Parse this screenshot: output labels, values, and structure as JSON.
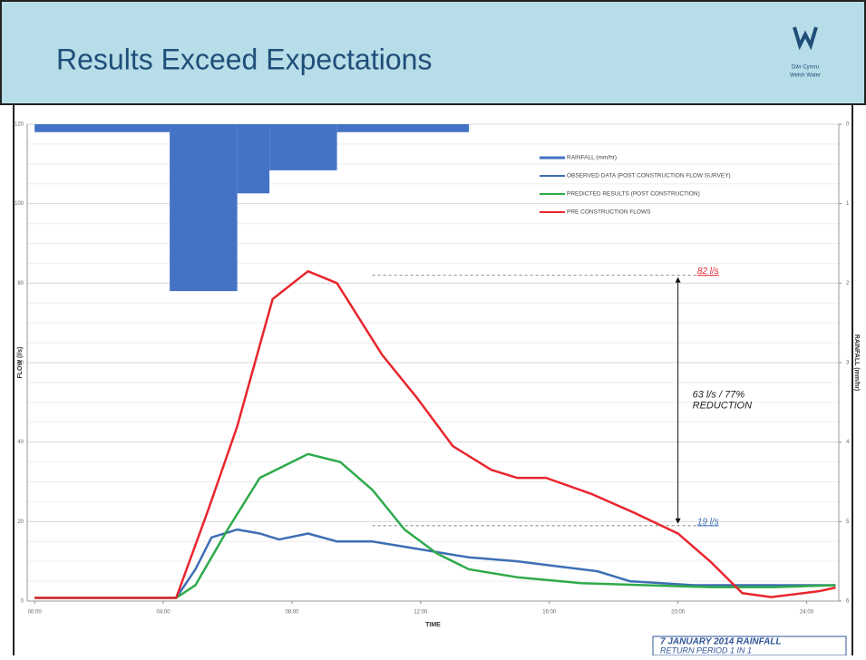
{
  "header": {
    "title": "Results Exceed Expectations",
    "logo_lines": [
      "Dŵr Cymru",
      "Welsh Water"
    ]
  },
  "chart_data": {
    "type": "line",
    "xlabel": "TIME",
    "ylabel": "FLOW (l/s)",
    "y2label": "RAINFALL (mm/hr)",
    "xlim": [
      -0.23,
      25
    ],
    "xticks": [
      {
        "value": 0,
        "label": "00:00"
      },
      {
        "value": 4,
        "label": "04:00"
      },
      {
        "value": 8,
        "label": "08:00"
      },
      {
        "value": 12,
        "label": "12:00"
      },
      {
        "value": 16,
        "label": "16:00"
      },
      {
        "value": 20,
        "label": "20:00"
      },
      {
        "value": 24,
        "label": "24:00"
      }
    ],
    "ylim": [
      0,
      120
    ],
    "yticks": [
      0,
      20,
      40,
      60,
      80,
      100,
      120
    ],
    "y2lim": [
      0,
      6
    ],
    "y2ticks": [
      0,
      1,
      2,
      3,
      4,
      5,
      6
    ],
    "y2_inverted": true,
    "grid": true,
    "legend": "upper right",
    "bars": {
      "name": "RAINFALL (mm/hr)",
      "color": "#4472c4",
      "axis": "y2",
      "bins": [
        0,
        4.2,
        6.3,
        7.3,
        9.4,
        13.5
      ],
      "values": [
        0.1,
        2.1,
        0.87,
        0.58,
        0.1
      ]
    },
    "series": [
      {
        "name": "OBSERVED DATA (POST CONSTRUCTION FLOW SURVEY)",
        "color": "#3d6fb4",
        "x": [
          0,
          4.4,
          5,
          5.5,
          6.3,
          7,
          7.6,
          8.5,
          9.4,
          10.5,
          12,
          13.5,
          15,
          16.5,
          17.5,
          18.5,
          19.5,
          20.5,
          22,
          24.9
        ],
        "values": [
          0.8,
          0.8,
          8,
          16,
          18,
          17,
          15.5,
          17,
          15,
          15,
          13,
          11,
          10,
          8.5,
          7.5,
          5,
          4.5,
          4,
          4,
          4
        ]
      },
      {
        "name": "PREDICTED RESULTS (POST CONSTRUCTION)",
        "color": "#2eaa4a",
        "x": [
          0,
          4.4,
          5,
          6,
          7,
          8.5,
          9.5,
          10.5,
          11.5,
          12.5,
          13.5,
          15,
          17,
          19,
          21,
          23,
          24.9
        ],
        "values": [
          0.8,
          0.8,
          4,
          18,
          31,
          37,
          35,
          28,
          18,
          12,
          8,
          6,
          4.5,
          4,
          3.5,
          3.5,
          4
        ]
      },
      {
        "name": "PRE CONSTRUCTION FLOWS",
        "color": "#e8262e",
        "x": [
          0,
          4.4,
          5.4,
          6.3,
          7.4,
          8.5,
          9.4,
          10.8,
          11.9,
          13,
          14.2,
          15,
          15.9,
          17.3,
          18.7,
          20,
          21,
          22,
          22.9,
          24.4,
          24.9
        ],
        "values": [
          0.8,
          0.8,
          23,
          44,
          76,
          83,
          80,
          62,
          51,
          39,
          33,
          31,
          31,
          27,
          22,
          17,
          10,
          2,
          1,
          2.5,
          3.4
        ]
      }
    ],
    "reference_lines": [
      {
        "value": 82,
        "label": "82 l/s",
        "color": "#e8262e"
      },
      {
        "value": 19,
        "label": "19 l/s",
        "color": "#3d6fb4"
      }
    ],
    "annotations": [
      "63 l/s / 77%",
      "REDUCTION"
    ],
    "caption": [
      "7 JANUARY 2014 RAINFALL",
      "RETURN PERIOD 1 IN 1"
    ]
  }
}
